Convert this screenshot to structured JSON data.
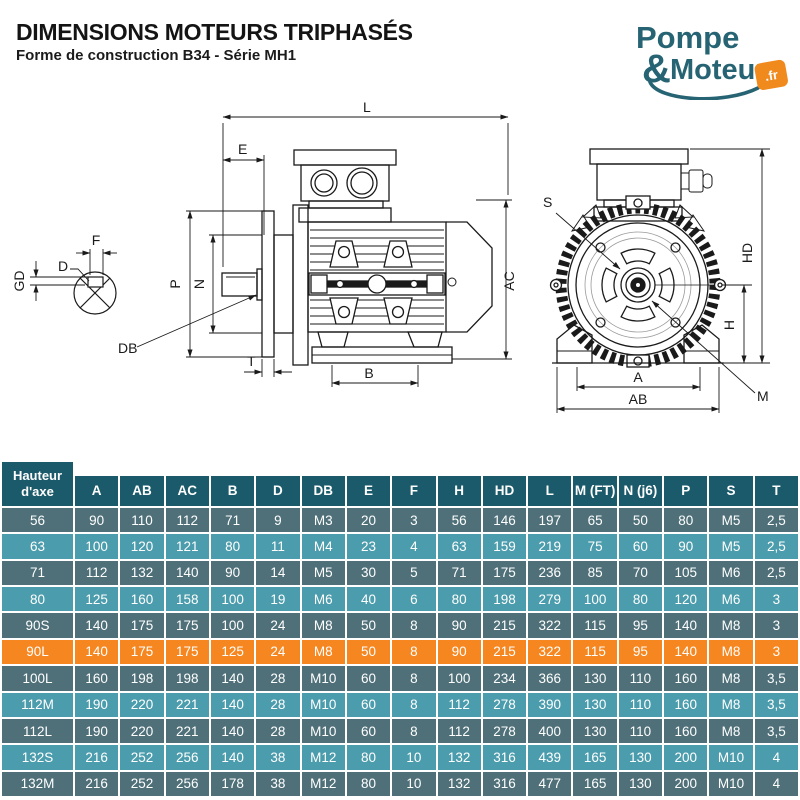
{
  "header": {
    "title": "DIMENSIONS MOTEURS TRIPHASÉS",
    "subtitle": "Forme de construction B34 - Série MH1"
  },
  "logo": {
    "word1": "Pompe",
    "ampersand": "&",
    "word2": "Moteur",
    "badge": ".fr"
  },
  "diagram": {
    "section_labels": {
      "F": "F",
      "D": "D",
      "GD": "GD"
    },
    "side_labels": {
      "L": "L",
      "E": "E",
      "P": "P",
      "N": "N",
      "DB": "DB",
      "T": "T",
      "B": "B",
      "AC": "AC"
    },
    "front_labels": {
      "S": "S",
      "HD": "HD",
      "H": "H",
      "A": "A",
      "AB": "AB",
      "M": "M"
    }
  },
  "table": {
    "columns": [
      "Hauteur d'axe",
      "A",
      "AB",
      "AC",
      "B",
      "D",
      "DB",
      "E",
      "F",
      "H",
      "HD",
      "L",
      "M (FT)",
      "N (j6)",
      "P",
      "S",
      "T"
    ],
    "rows": [
      {
        "highlight": false,
        "values": [
          "56",
          "90",
          "110",
          "112",
          "71",
          "9",
          "M3",
          "20",
          "3",
          "56",
          "146",
          "197",
          "65",
          "50",
          "80",
          "M5",
          "2,5"
        ]
      },
      {
        "highlight": false,
        "values": [
          "63",
          "100",
          "120",
          "121",
          "80",
          "11",
          "M4",
          "23",
          "4",
          "63",
          "159",
          "219",
          "75",
          "60",
          "90",
          "M5",
          "2,5"
        ]
      },
      {
        "highlight": false,
        "values": [
          "71",
          "112",
          "132",
          "140",
          "90",
          "14",
          "M5",
          "30",
          "5",
          "71",
          "175",
          "236",
          "85",
          "70",
          "105",
          "M6",
          "2,5"
        ]
      },
      {
        "highlight": false,
        "values": [
          "80",
          "125",
          "160",
          "158",
          "100",
          "19",
          "M6",
          "40",
          "6",
          "80",
          "198",
          "279",
          "100",
          "80",
          "120",
          "M6",
          "3"
        ]
      },
      {
        "highlight": false,
        "values": [
          "90S",
          "140",
          "175",
          "175",
          "100",
          "24",
          "M8",
          "50",
          "8",
          "90",
          "215",
          "322",
          "115",
          "95",
          "140",
          "M8",
          "3"
        ]
      },
      {
        "highlight": true,
        "values": [
          "90L",
          "140",
          "175",
          "175",
          "125",
          "24",
          "M8",
          "50",
          "8",
          "90",
          "215",
          "322",
          "115",
          "95",
          "140",
          "M8",
          "3"
        ]
      },
      {
        "highlight": false,
        "values": [
          "100L",
          "160",
          "198",
          "198",
          "140",
          "28",
          "M10",
          "60",
          "8",
          "100",
          "234",
          "366",
          "130",
          "110",
          "160",
          "M8",
          "3,5"
        ]
      },
      {
        "highlight": false,
        "values": [
          "112M",
          "190",
          "220",
          "221",
          "140",
          "28",
          "M10",
          "60",
          "8",
          "112",
          "278",
          "390",
          "130",
          "110",
          "160",
          "M8",
          "3,5"
        ]
      },
      {
        "highlight": false,
        "values": [
          "112L",
          "190",
          "220",
          "221",
          "140",
          "28",
          "M10",
          "60",
          "8",
          "112",
          "278",
          "400",
          "130",
          "110",
          "160",
          "M8",
          "3,5"
        ]
      },
      {
        "highlight": false,
        "values": [
          "132S",
          "216",
          "252",
          "256",
          "140",
          "38",
          "M12",
          "80",
          "10",
          "132",
          "316",
          "439",
          "165",
          "130",
          "200",
          "M10",
          "4"
        ]
      },
      {
        "highlight": false,
        "values": [
          "132M",
          "216",
          "252",
          "256",
          "178",
          "38",
          "M12",
          "80",
          "10",
          "132",
          "316",
          "477",
          "165",
          "130",
          "200",
          "M10",
          "4"
        ]
      }
    ]
  },
  "colors": {
    "header": "#1b5a6b",
    "dark": "#4f7079",
    "light": "#4b9cac",
    "hl": "#f6861f",
    "logo": "#266373",
    "badge": "#f08a1d"
  }
}
